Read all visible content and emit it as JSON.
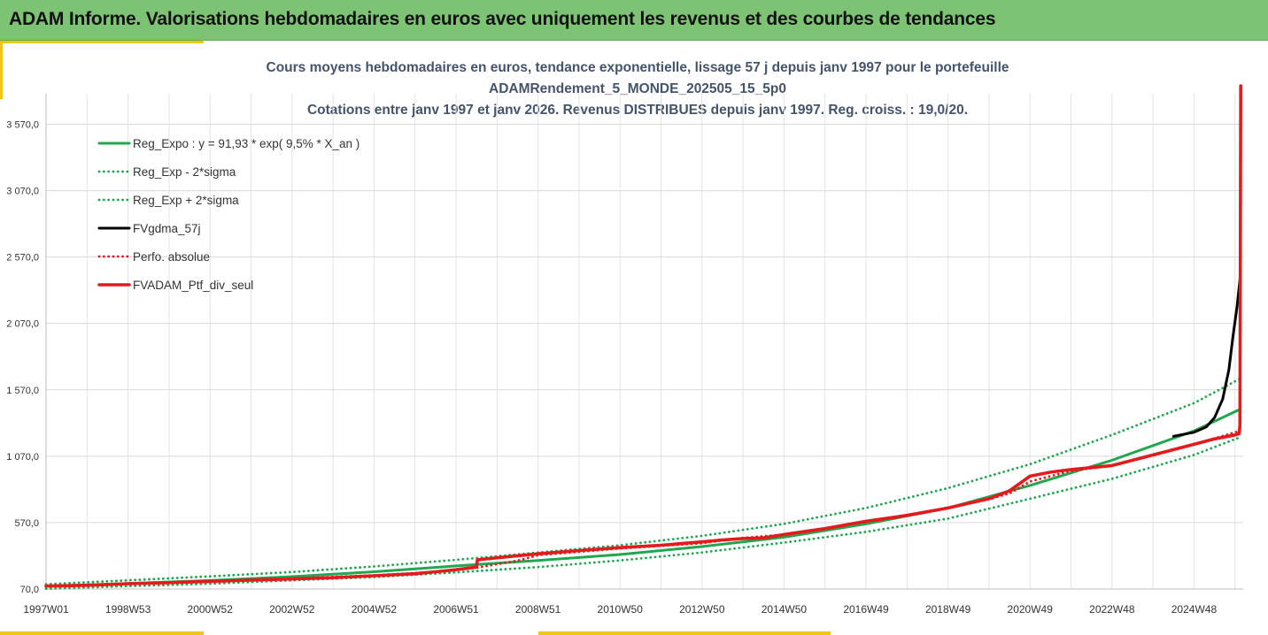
{
  "banner": {
    "title": "ADAM Informe. Valorisations hebdomadaires en euros avec uniquement les revenus et des courbes de tendances"
  },
  "colors": {
    "banner_bg": "#7dc374",
    "accent": "#f2c41a",
    "trend": "#21a74f",
    "smoothed": "#000000",
    "portfolio": "#e41a1c",
    "title_text": "#44546a"
  },
  "chart_data": {
    "type": "line",
    "title_lines": [
      "Cours moyens hebdomadaires  en euros, tendance exponentielle, lissage 57 j depuis janv 1997 pour le portefeuille",
      "ADAMRendement_5_MONDE_202505_15_5p0",
      "Cotations entre janv 1997 et janv 2026. Revenus DISTRIBUES depuis janv 1997. Reg. croiss. : 19,0/20."
    ],
    "xlabel": "",
    "ylabel": "",
    "x_range_years": [
      1997.0,
      2026.2
    ],
    "ylim": [
      70,
      3800
    ],
    "y_ticks": [
      {
        "value": 70,
        "label": "70,0"
      },
      {
        "value": 570,
        "label": "570,0"
      },
      {
        "value": 1070,
        "label": "1 070,0"
      },
      {
        "value": 1570,
        "label": "1 570,0"
      },
      {
        "value": 2070,
        "label": "2 070,0"
      },
      {
        "value": 2570,
        "label": "2 570,0"
      },
      {
        "value": 3070,
        "label": "3 070,0"
      },
      {
        "value": 3570,
        "label": "3 570,0"
      }
    ],
    "x_ticks": [
      {
        "x": 1997.0,
        "label": "1997W01"
      },
      {
        "x": 1999.0,
        "label": "1998W53"
      },
      {
        "x": 2001.0,
        "label": "2000W52"
      },
      {
        "x": 2003.0,
        "label": "2002W52"
      },
      {
        "x": 2005.0,
        "label": "2004W52"
      },
      {
        "x": 2007.0,
        "label": "2006W51"
      },
      {
        "x": 2009.0,
        "label": "2008W51"
      },
      {
        "x": 2011.0,
        "label": "2010W50"
      },
      {
        "x": 2013.0,
        "label": "2012W50"
      },
      {
        "x": 2015.0,
        "label": "2014W50"
      },
      {
        "x": 2017.0,
        "label": "2016W49"
      },
      {
        "x": 2019.0,
        "label": "2018W49"
      },
      {
        "x": 2021.0,
        "label": "2020W49"
      },
      {
        "x": 2023.0,
        "label": "2022W48"
      },
      {
        "x": 2025.0,
        "label": "2024W48"
      }
    ],
    "grid": "vertical-and-horizontal",
    "legend_position": "top-left",
    "legend": [
      {
        "label": "Reg_Expo : y = 91,93 * exp( 9,5% *  X_an )",
        "style": "solid",
        "color": "#21a74f"
      },
      {
        "label": "Reg_Exp - 2*sigma",
        "style": "dotted",
        "color": "#21a74f"
      },
      {
        "label": "Reg_Exp + 2*sigma",
        "style": "dotted",
        "color": "#21a74f"
      },
      {
        "label": "FVgdma_57j",
        "style": "solid",
        "color": "#000000"
      },
      {
        "label": "Perfo. absolue",
        "style": "dotted",
        "color": "#e41a1c"
      },
      {
        "label": "FVADAM_Ptf_div_seul",
        "style": "solid-thick",
        "color": "#e41a1c"
      }
    ],
    "series": [
      {
        "name": "Reg_Expo : y = 91,93 * exp( 9,5% *  X_an )",
        "color": "#21a74f",
        "style": "solid",
        "x": [
          1997,
          1999,
          2001,
          2003,
          2005,
          2007,
          2009,
          2011,
          2013,
          2015,
          2017,
          2019,
          2021,
          2023,
          2025,
          2026.1
        ],
        "y": [
          92,
          111,
          134,
          163,
          200,
          244,
          285,
          330,
          390,
          460,
          560,
          680,
          850,
          1040,
          1260,
          1420
        ]
      },
      {
        "name": "Reg_Exp - 2*sigma",
        "color": "#21a74f",
        "style": "dotted",
        "x": [
          1997,
          1999,
          2001,
          2003,
          2005,
          2007,
          2009,
          2011,
          2013,
          2015,
          2017,
          2019,
          2021,
          2023,
          2025,
          2026.1
        ],
        "y": [
          72,
          92,
          110,
          135,
          160,
          195,
          235,
          285,
          345,
          420,
          500,
          600,
          750,
          900,
          1080,
          1210
        ]
      },
      {
        "name": "Reg_Exp + 2*sigma",
        "color": "#21a74f",
        "style": "dotted",
        "x": [
          1997,
          1999,
          2001,
          2003,
          2005,
          2007,
          2009,
          2011,
          2013,
          2015,
          2017,
          2019,
          2021,
          2023,
          2025,
          2026.1
        ],
        "y": [
          106,
          135,
          165,
          198,
          240,
          290,
          345,
          400,
          470,
          560,
          680,
          830,
          1010,
          1230,
          1470,
          1650
        ]
      },
      {
        "name": "FVgdma_57j",
        "color": "#000000",
        "style": "solid",
        "x": [
          2024.5,
          2025.0,
          2025.3,
          2025.5,
          2025.7,
          2025.85,
          2025.95,
          2026.05,
          2026.12
        ],
        "y": [
          1220,
          1250,
          1290,
          1360,
          1500,
          1720,
          1970,
          2200,
          2400
        ]
      },
      {
        "name": "Perfo. absolue",
        "color": "#e41a1c",
        "style": "dotted",
        "x": [
          1997,
          1999,
          2001,
          2003,
          2005,
          2006.5,
          2007.5,
          2008.6,
          2009,
          2010,
          2011,
          2012,
          2013,
          2014,
          2015,
          2016,
          2017,
          2018,
          2019,
          2020,
          2020.5,
          2021,
          2022,
          2023,
          2024,
          2025,
          2026.0,
          2026.12
        ],
        "y": [
          92,
          110,
          130,
          150,
          173,
          200,
          230,
          290,
          325,
          350,
          375,
          395,
          415,
          455,
          480,
          525,
          575,
          620,
          680,
          745,
          790,
          880,
          960,
          1000,
          1075,
          1160,
          1250,
          1260
        ]
      },
      {
        "name": "FVADAM_Ptf_div_seul",
        "color": "#e41a1c",
        "style": "solid-thick",
        "x": [
          1997,
          1998,
          1999,
          2000,
          2001,
          2002,
          2003,
          2004,
          2005,
          2006,
          2006.5,
          2007,
          2007.5,
          2007.52,
          2008,
          2009,
          2010,
          2011,
          2012,
          2013,
          2013.5,
          2014,
          2014.5,
          2015,
          2016,
          2017,
          2018,
          2019,
          2020,
          2020.5,
          2021,
          2021.5,
          2022,
          2023,
          2024,
          2025,
          2025.5,
          2026.0,
          2026.1,
          2026.12,
          2026.14
        ],
        "y": [
          92,
          98,
          110,
          118,
          128,
          137,
          146,
          155,
          170,
          185,
          200,
          215,
          235,
          290,
          305,
          335,
          360,
          382,
          400,
          425,
          440,
          450,
          455,
          480,
          525,
          580,
          625,
          680,
          750,
          810,
          920,
          950,
          970,
          1000,
          1080,
          1160,
          1200,
          1230,
          1240,
          1300,
          3860
        ]
      }
    ]
  }
}
